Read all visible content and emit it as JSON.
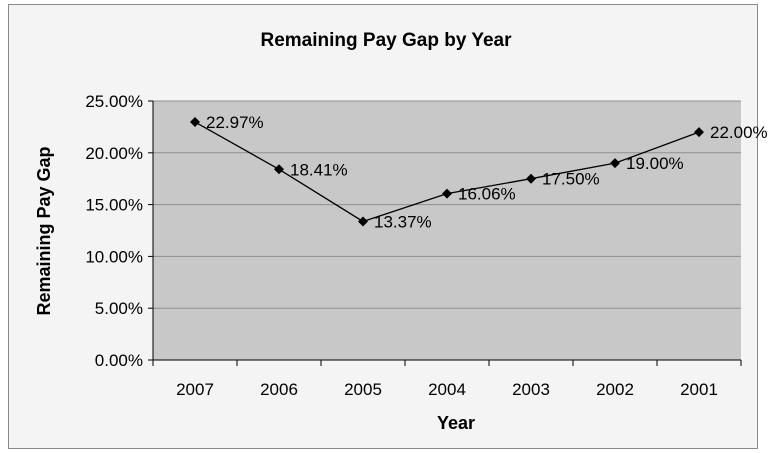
{
  "chart_data": {
    "type": "line",
    "title": "Remaining Pay Gap by Year",
    "xlabel": "Year",
    "ylabel": "Remaining Pay Gap",
    "categories": [
      "2007",
      "2006",
      "2005",
      "2004",
      "2003",
      "2002",
      "2001"
    ],
    "series": [
      {
        "values": [
          22.97,
          18.41,
          13.37,
          16.06,
          17.5,
          19.0,
          22.0
        ],
        "data_labels": [
          "22.97%",
          "18.41%",
          "13.37%",
          "16.06%",
          "17.50%",
          "19.00%",
          "22.00%"
        ]
      }
    ],
    "ylim": [
      0,
      25
    ],
    "yticks": [
      0,
      5,
      10,
      15,
      20,
      25
    ],
    "ytick_labels": [
      "0.00%",
      "5.00%",
      "10.00%",
      "15.00%",
      "20.00%",
      "25.00%"
    ],
    "grid": true,
    "legend": "none",
    "colors": {
      "plot_background": "#c8c8c8",
      "gridline": "#8f8f8f",
      "series_line": "#000000",
      "marker": "#000000"
    }
  }
}
